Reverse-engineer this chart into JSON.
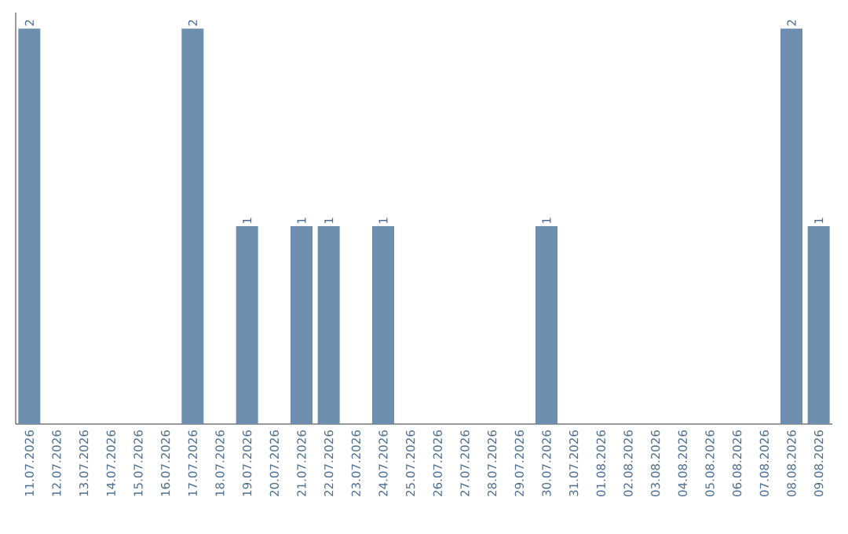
{
  "chart_data": {
    "type": "bar",
    "categories": [
      "11.07.2026",
      "12.07.2026",
      "13.07.2026",
      "14.07.2026",
      "15.07.2026",
      "16.07.2026",
      "17.07.2026",
      "18.07.2026",
      "19.07.2026",
      "20.07.2026",
      "21.07.2026",
      "22.07.2026",
      "23.07.2026",
      "24.07.2026",
      "25.07.2026",
      "26.07.2026",
      "27.07.2026",
      "28.07.2026",
      "29.07.2026",
      "30.07.2026",
      "31.07.2026",
      "01.08.2026",
      "02.08.2026",
      "03.08.2026",
      "04.08.2026",
      "05.08.2026",
      "06.08.2026",
      "07.08.2026",
      "08.08.2026",
      "09.08.2026"
    ],
    "values": [
      2,
      0,
      0,
      0,
      0,
      0,
      2,
      0,
      1,
      0,
      1,
      1,
      0,
      1,
      0,
      0,
      0,
      0,
      0,
      1,
      0,
      0,
      0,
      0,
      0,
      0,
      0,
      0,
      2,
      1
    ],
    "value_labels": [
      "2",
      null,
      null,
      null,
      null,
      null,
      "2",
      null,
      "1",
      null,
      "1",
      "1",
      null,
      "1",
      null,
      null,
      null,
      null,
      null,
      "1",
      null,
      null,
      null,
      null,
      null,
      null,
      null,
      null,
      "2",
      "1"
    ],
    "color": "#6d8eac"
  }
}
